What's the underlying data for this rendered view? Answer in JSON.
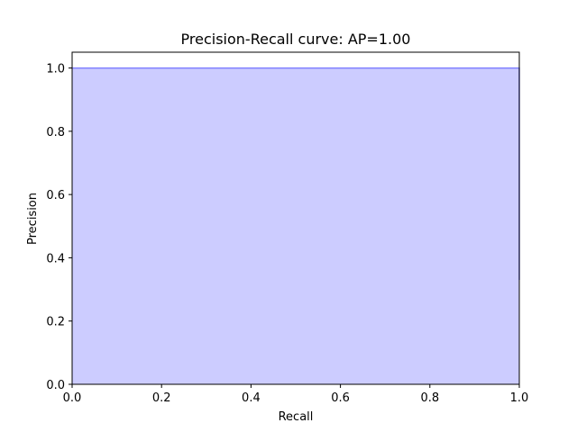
{
  "chart_data": {
    "type": "area",
    "title": "Precision-Recall curve: AP=1.00",
    "xlabel": "Recall",
    "ylabel": "Precision",
    "xlim": [
      0.0,
      1.0
    ],
    "ylim": [
      0.0,
      1.05
    ],
    "xticks": [
      "0.0",
      "0.2",
      "0.4",
      "0.6",
      "0.8",
      "1.0"
    ],
    "yticks": [
      "0.0",
      "0.2",
      "0.4",
      "0.6",
      "0.8",
      "1.0"
    ],
    "grid": false,
    "series": [
      {
        "x": [
          0.0,
          1.0,
          1.0
        ],
        "y": [
          1.0,
          1.0,
          0.33
        ],
        "fill_color": "#ccccff",
        "line_color": "#8080ff",
        "step": "post"
      }
    ]
  }
}
